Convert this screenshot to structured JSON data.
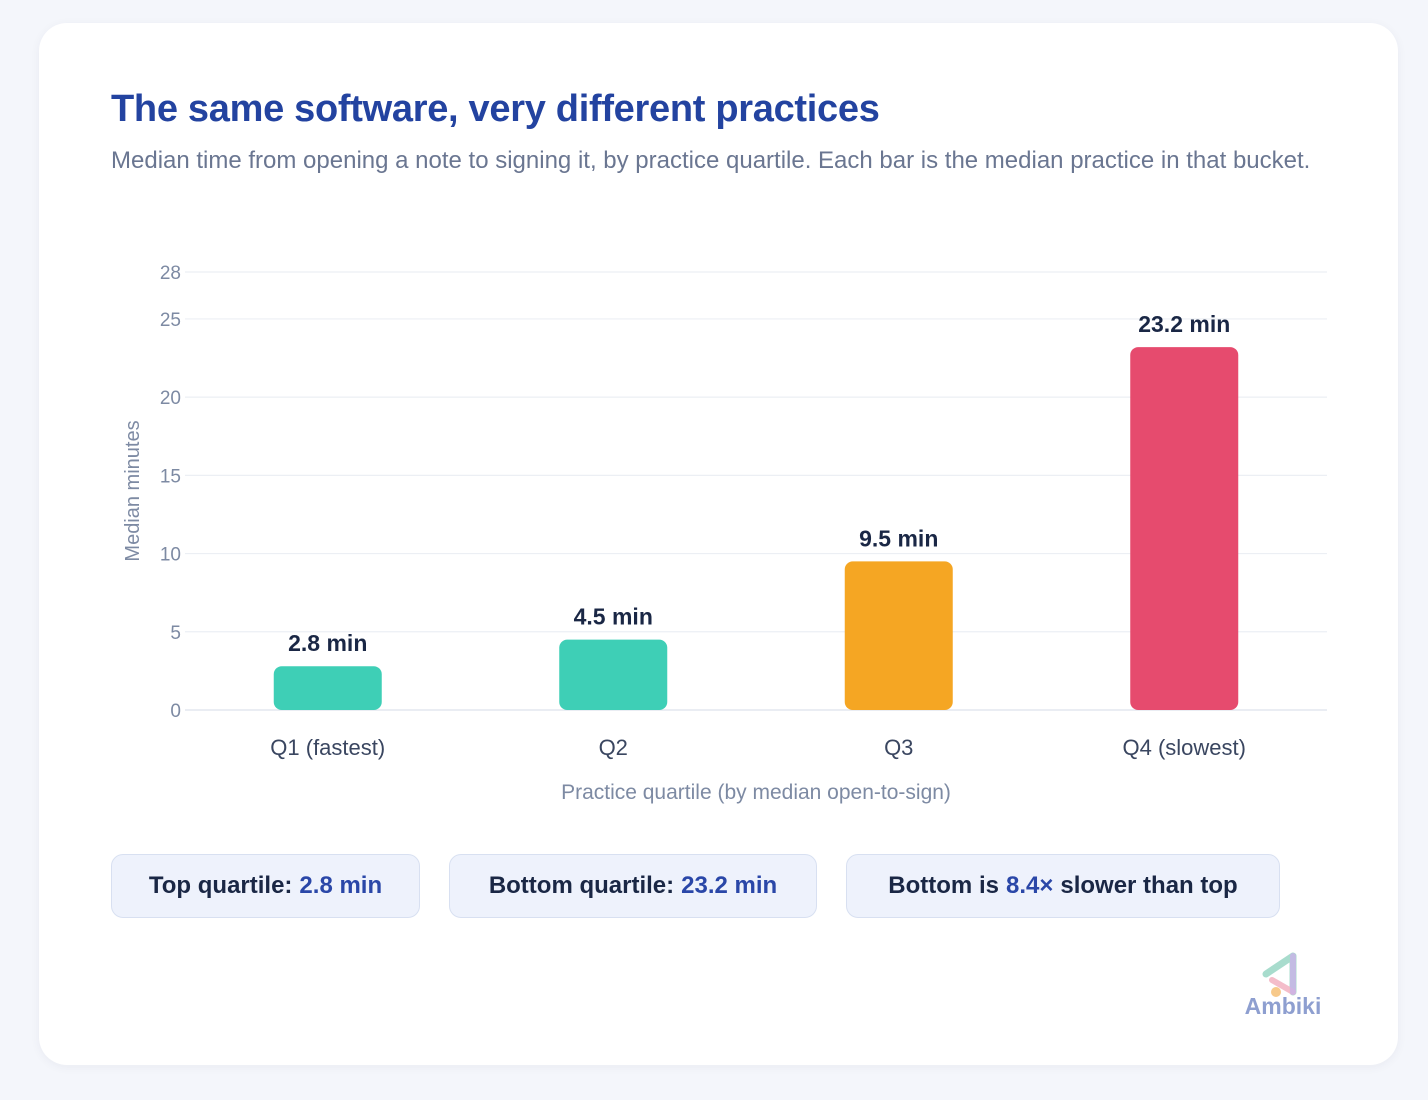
{
  "header": {
    "title": "The same software, very different practices",
    "subtitle": "Median time from opening a note to signing it, by practice quartile. Each bar is the median practice in that bucket."
  },
  "chart_data": {
    "type": "bar",
    "categories": [
      "Q1 (fastest)",
      "Q2",
      "Q3",
      "Q4 (slowest)"
    ],
    "values": [
      2.8,
      4.5,
      9.5,
      23.2
    ],
    "value_labels": [
      "2.8 min",
      "4.5 min",
      "9.5 min",
      "23.2 min"
    ],
    "colors": [
      "#3ecfb6",
      "#3ecfb6",
      "#f5a623",
      "#e64b6e"
    ],
    "title": "The same software, very different practices",
    "xlabel": "Practice quartile (by median open-to-sign)",
    "ylabel": "Median minutes",
    "ylim": [
      0,
      28
    ],
    "yticks": [
      0,
      5,
      10,
      15,
      20,
      25,
      28
    ],
    "grid": true,
    "legend": "none"
  },
  "stats": [
    {
      "label": "Top quartile:",
      "value": "2.8 min",
      "suffix": ""
    },
    {
      "label": "Bottom quartile:",
      "value": "23.2 min",
      "suffix": ""
    },
    {
      "label": "Bottom is",
      "value": "8.4×",
      "suffix": "slower than top"
    }
  ],
  "brand": {
    "name": "Ambiki"
  }
}
